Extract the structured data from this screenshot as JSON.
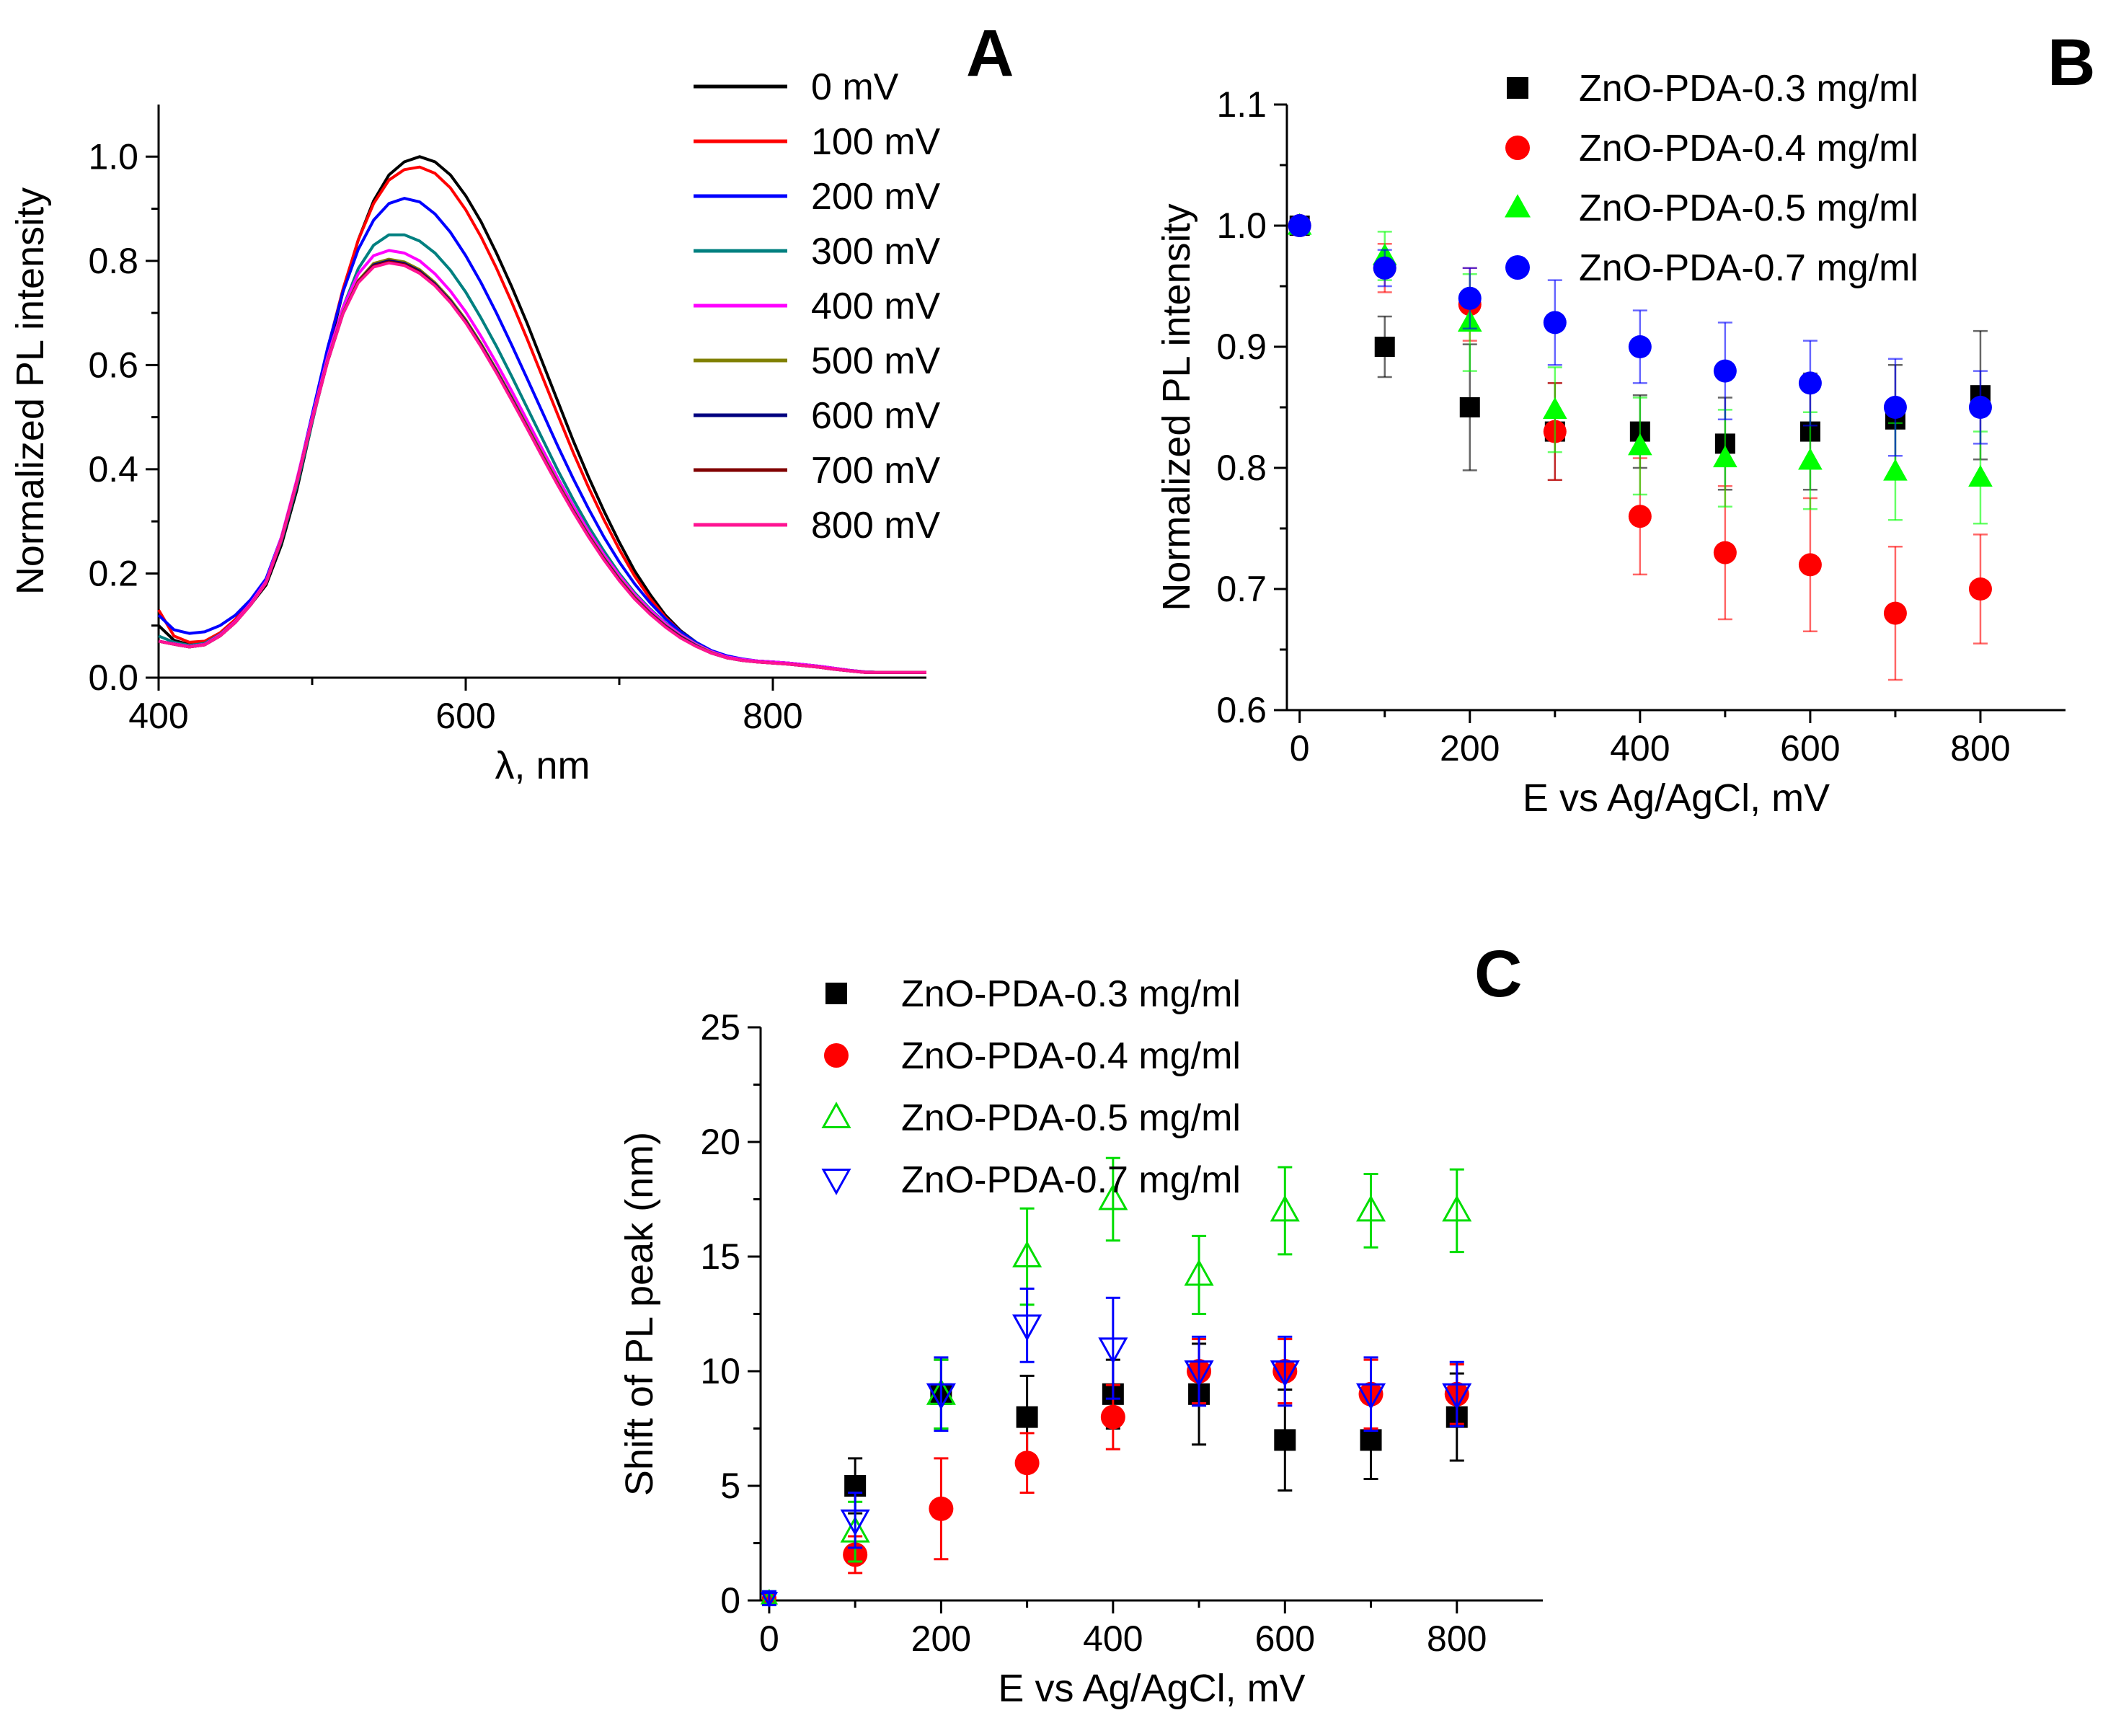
{
  "chart_data": [
    {
      "panel": "A",
      "type": "line",
      "xlabel": "λ, nm",
      "ylabel": "Normalized PL intensity",
      "xlim": [
        400,
        900
      ],
      "ylim": [
        0.0,
        1.1
      ],
      "xticks": [
        "400",
        "600",
        "800"
      ],
      "xtick_values": [
        400,
        600,
        800
      ],
      "yticks": [
        "0.0",
        "0.2",
        "0.4",
        "0.6",
        "0.8",
        "1.0"
      ],
      "ytick_values": [
        0.0,
        0.2,
        0.4,
        0.6,
        0.8,
        1.0
      ],
      "x": [
        400,
        410,
        420,
        430,
        440,
        450,
        460,
        470,
        480,
        490,
        500,
        510,
        520,
        530,
        540,
        550,
        560,
        570,
        580,
        590,
        600,
        610,
        620,
        630,
        640,
        650,
        660,
        670,
        680,
        690,
        700,
        710,
        720,
        730,
        740,
        750,
        760,
        770,
        780,
        790,
        800,
        810,
        820,
        830,
        840,
        850,
        860,
        870,
        880,
        890,
        900
      ],
      "series": [
        {
          "name": "0 mV",
          "color": "#000000",
          "values": [
            0.1,
            0.072,
            0.063,
            0.065,
            0.082,
            0.108,
            0.14,
            0.178,
            0.255,
            0.36,
            0.49,
            0.62,
            0.74,
            0.84,
            0.915,
            0.965,
            0.99,
            1.0,
            0.99,
            0.965,
            0.925,
            0.875,
            0.815,
            0.75,
            0.68,
            0.605,
            0.53,
            0.455,
            0.385,
            0.32,
            0.26,
            0.205,
            0.16,
            0.12,
            0.09,
            0.068,
            0.05,
            0.04,
            0.035,
            0.032,
            0.03,
            0.028,
            0.025,
            0.022,
            0.018,
            0.014,
            0.011,
            0.01,
            0.01,
            0.01,
            0.01
          ]
        },
        {
          "name": "100 mV",
          "color": "#ff0000",
          "values": [
            0.13,
            0.08,
            0.068,
            0.07,
            0.086,
            0.112,
            0.146,
            0.186,
            0.265,
            0.372,
            0.5,
            0.63,
            0.745,
            0.84,
            0.91,
            0.955,
            0.975,
            0.98,
            0.968,
            0.94,
            0.898,
            0.846,
            0.786,
            0.72,
            0.65,
            0.577,
            0.504,
            0.432,
            0.365,
            0.303,
            0.246,
            0.195,
            0.152,
            0.116,
            0.088,
            0.066,
            0.05,
            0.04,
            0.035,
            0.032,
            0.03,
            0.028,
            0.025,
            0.022,
            0.018,
            0.014,
            0.011,
            0.01,
            0.01,
            0.01,
            0.01
          ]
        },
        {
          "name": "200 mV",
          "color": "#0000ff",
          "values": [
            0.12,
            0.092,
            0.085,
            0.088,
            0.1,
            0.12,
            0.15,
            0.19,
            0.27,
            0.377,
            0.505,
            0.632,
            0.74,
            0.822,
            0.878,
            0.91,
            0.92,
            0.913,
            0.89,
            0.855,
            0.81,
            0.758,
            0.7,
            0.638,
            0.574,
            0.509,
            0.444,
            0.382,
            0.324,
            0.27,
            0.222,
            0.18,
            0.144,
            0.113,
            0.088,
            0.068,
            0.052,
            0.042,
            0.036,
            0.032,
            0.03,
            0.028,
            0.025,
            0.022,
            0.018,
            0.014,
            0.011,
            0.01,
            0.01,
            0.01,
            0.01
          ]
        },
        {
          "name": "300 mV",
          "color": "#008080",
          "values": [
            0.08,
            0.068,
            0.062,
            0.066,
            0.083,
            0.108,
            0.143,
            0.183,
            0.262,
            0.368,
            0.49,
            0.61,
            0.71,
            0.785,
            0.83,
            0.85,
            0.85,
            0.838,
            0.815,
            0.782,
            0.74,
            0.69,
            0.636,
            0.578,
            0.518,
            0.458,
            0.398,
            0.342,
            0.29,
            0.243,
            0.2,
            0.163,
            0.132,
            0.105,
            0.083,
            0.065,
            0.05,
            0.04,
            0.035,
            0.032,
            0.03,
            0.028,
            0.025,
            0.022,
            0.018,
            0.014,
            0.011,
            0.01,
            0.01,
            0.01,
            0.01
          ]
        },
        {
          "name": "400 mV",
          "color": "#ff00ff",
          "values": [
            0.07,
            0.065,
            0.06,
            0.064,
            0.082,
            0.108,
            0.143,
            0.185,
            0.27,
            0.38,
            0.5,
            0.615,
            0.71,
            0.775,
            0.81,
            0.82,
            0.815,
            0.8,
            0.775,
            0.742,
            0.702,
            0.655,
            0.604,
            0.55,
            0.494,
            0.438,
            0.383,
            0.33,
            0.281,
            0.236,
            0.196,
            0.16,
            0.13,
            0.104,
            0.082,
            0.064,
            0.05,
            0.04,
            0.035,
            0.032,
            0.03,
            0.028,
            0.025,
            0.022,
            0.018,
            0.014,
            0.011,
            0.01,
            0.01,
            0.01,
            0.01
          ]
        },
        {
          "name": "500 mV",
          "color": "#808000",
          "values": [
            0.07,
            0.064,
            0.059,
            0.063,
            0.08,
            0.106,
            0.14,
            0.182,
            0.266,
            0.375,
            0.495,
            0.608,
            0.7,
            0.762,
            0.795,
            0.803,
            0.798,
            0.783,
            0.758,
            0.726,
            0.687,
            0.641,
            0.591,
            0.538,
            0.483,
            0.428,
            0.374,
            0.322,
            0.274,
            0.23,
            0.19,
            0.155,
            0.125,
            0.1,
            0.079,
            0.062,
            0.048,
            0.038,
            0.033,
            0.03,
            0.028,
            0.026,
            0.023,
            0.02,
            0.016,
            0.013,
            0.01,
            0.01,
            0.01,
            0.01,
            0.01
          ]
        },
        {
          "name": "600 mV",
          "color": "#000080",
          "values": [
            0.07,
            0.064,
            0.059,
            0.063,
            0.08,
            0.106,
            0.14,
            0.182,
            0.265,
            0.374,
            0.494,
            0.606,
            0.698,
            0.76,
            0.792,
            0.8,
            0.795,
            0.78,
            0.755,
            0.723,
            0.684,
            0.638,
            0.588,
            0.535,
            0.48,
            0.425,
            0.371,
            0.32,
            0.272,
            0.228,
            0.188,
            0.153,
            0.124,
            0.099,
            0.078,
            0.061,
            0.047,
            0.038,
            0.033,
            0.03,
            0.028,
            0.026,
            0.023,
            0.02,
            0.016,
            0.013,
            0.01,
            0.01,
            0.01,
            0.01,
            0.01
          ]
        },
        {
          "name": "700 mV",
          "color": "#800000",
          "values": [
            0.07,
            0.064,
            0.059,
            0.063,
            0.08,
            0.106,
            0.14,
            0.182,
            0.265,
            0.374,
            0.494,
            0.606,
            0.698,
            0.76,
            0.79,
            0.798,
            0.793,
            0.778,
            0.753,
            0.721,
            0.682,
            0.636,
            0.586,
            0.533,
            0.479,
            0.424,
            0.37,
            0.319,
            0.271,
            0.227,
            0.187,
            0.152,
            0.123,
            0.098,
            0.077,
            0.06,
            0.047,
            0.038,
            0.033,
            0.03,
            0.028,
            0.026,
            0.023,
            0.02,
            0.016,
            0.013,
            0.01,
            0.01,
            0.01,
            0.01,
            0.01
          ]
        },
        {
          "name": "800 mV",
          "color": "#ff1493",
          "values": [
            0.07,
            0.064,
            0.059,
            0.063,
            0.08,
            0.106,
            0.14,
            0.182,
            0.265,
            0.374,
            0.494,
            0.606,
            0.698,
            0.758,
            0.788,
            0.796,
            0.791,
            0.776,
            0.752,
            0.72,
            0.681,
            0.635,
            0.585,
            0.532,
            0.478,
            0.423,
            0.369,
            0.318,
            0.27,
            0.226,
            0.186,
            0.151,
            0.122,
            0.097,
            0.076,
            0.06,
            0.047,
            0.038,
            0.033,
            0.03,
            0.028,
            0.026,
            0.023,
            0.02,
            0.016,
            0.013,
            0.01,
            0.01,
            0.01,
            0.01,
            0.01
          ]
        }
      ]
    },
    {
      "panel": "B",
      "type": "scatter",
      "xlabel": "E vs Ag/AgCl, mV",
      "ylabel": "Normalized PL intensity",
      "xlim": [
        -15,
        900
      ],
      "ylim": [
        0.6,
        1.1
      ],
      "xticks": [
        "0",
        "200",
        "400",
        "600",
        "800"
      ],
      "xtick_values": [
        0,
        200,
        400,
        600,
        800
      ],
      "yticks": [
        "0.6",
        "0.7",
        "0.8",
        "0.9",
        "1.0",
        "1.1"
      ],
      "ytick_values": [
        0.6,
        0.7,
        0.8,
        0.9,
        1.0,
        1.1
      ],
      "x": [
        0,
        100,
        200,
        300,
        400,
        500,
        600,
        700,
        800
      ],
      "series": [
        {
          "name": "ZnO-PDA-0.3 mg/ml",
          "marker": "square",
          "color": "#000000",
          "values": [
            1.0,
            0.9,
            0.85,
            0.83,
            0.83,
            0.82,
            0.83,
            0.84,
            0.86
          ],
          "errors": [
            0.005,
            0.025,
            0.052,
            0.04,
            0.03,
            0.038,
            0.048,
            0.045,
            0.053
          ]
        },
        {
          "name": "ZnO-PDA-0.4 mg/ml",
          "marker": "circle",
          "color": "#ff0000",
          "values": [
            1.0,
            0.965,
            0.935,
            0.83,
            0.76,
            0.73,
            0.72,
            0.68,
            0.7
          ],
          "errors": [
            0.005,
            0.02,
            0.03,
            0.04,
            0.048,
            0.055,
            0.055,
            0.055,
            0.045
          ]
        },
        {
          "name": "ZnO-PDA-0.5 mg/ml",
          "marker": "triangle-up",
          "color": "#00ff00",
          "values": [
            1.0,
            0.975,
            0.92,
            0.848,
            0.818,
            0.808,
            0.806,
            0.797,
            0.792
          ],
          "errors": [
            0.005,
            0.02,
            0.04,
            0.035,
            0.04,
            0.04,
            0.04,
            0.04,
            0.038
          ]
        },
        {
          "name": "ZnO-PDA-0.7 mg/ml",
          "marker": "circle",
          "color": "#0000ff",
          "values": [
            1.0,
            0.965,
            0.94,
            0.92,
            0.9,
            0.88,
            0.87,
            0.85,
            0.85
          ],
          "errors": [
            0.005,
            0.015,
            0.025,
            0.035,
            0.03,
            0.04,
            0.035,
            0.04,
            0.03
          ]
        }
      ]
    },
    {
      "panel": "C",
      "type": "scatter",
      "xlabel": "E vs Ag/AgCl, mV",
      "ylabel": "Shift of PL peak (nm)",
      "xlim": [
        -10,
        900
      ],
      "ylim": [
        0,
        25
      ],
      "xticks": [
        "0",
        "200",
        "400",
        "600",
        "800"
      ],
      "xtick_values": [
        0,
        200,
        400,
        600,
        800
      ],
      "yticks": [
        "0",
        "5",
        "10",
        "15",
        "20",
        "25"
      ],
      "ytick_values": [
        0,
        5,
        10,
        15,
        20,
        25
      ],
      "x": [
        0,
        100,
        200,
        300,
        400,
        500,
        600,
        700,
        800
      ],
      "series": [
        {
          "name": "ZnO-PDA-0.3 mg/ml",
          "marker": "square",
          "color": "#000000",
          "values": [
            0.1,
            5,
            9,
            8,
            9,
            9,
            7,
            7,
            8
          ],
          "errors": [
            0.2,
            1.2,
            1.5,
            1.8,
            1.5,
            2.2,
            2.2,
            1.7,
            1.9
          ]
        },
        {
          "name": "ZnO-PDA-0.4 mg/ml",
          "marker": "circle",
          "color": "#ff0000",
          "values": [
            0.1,
            2,
            4,
            6,
            8,
            10,
            10,
            9,
            9
          ],
          "errors": [
            0.2,
            0.8,
            2.2,
            1.3,
            1.4,
            1.4,
            1.4,
            1.5,
            1.3
          ]
        },
        {
          "name": "ZnO-PDA-0.5 mg/ml",
          "marker": "triangle-up-open",
          "color": "#00dd00",
          "values": [
            0.1,
            3,
            9,
            15,
            17.5,
            14.2,
            17,
            17,
            17
          ],
          "errors": [
            0.3,
            1.3,
            1.5,
            2.1,
            1.8,
            1.7,
            1.9,
            1.6,
            1.8
          ]
        },
        {
          "name": "ZnO-PDA-0.7 mg/ml",
          "marker": "triangle-down-open",
          "color": "#0000ff",
          "values": [
            0.1,
            3.5,
            9,
            12,
            11,
            10,
            10,
            9,
            9
          ],
          "errors": [
            0.3,
            1.2,
            1.6,
            1.6,
            2.2,
            1.5,
            1.5,
            1.6,
            1.4
          ]
        }
      ]
    }
  ],
  "panel_labels": {
    "a": "A",
    "b": "B",
    "c": "C"
  }
}
